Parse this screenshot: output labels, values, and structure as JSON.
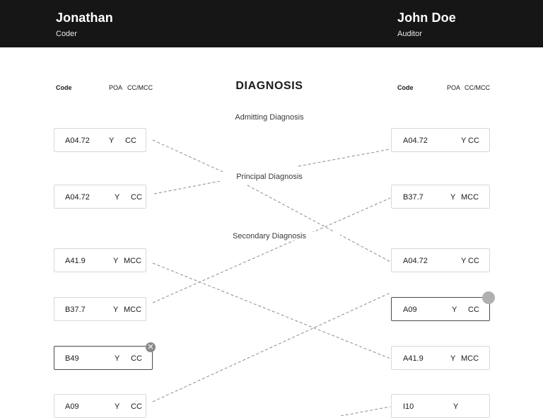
{
  "left_user": {
    "name": "Jonathan",
    "role": "Coder"
  },
  "right_user": {
    "name": "John Doe",
    "role": "Auditor"
  },
  "columns": {
    "code": "Code",
    "poa": "POA",
    "cc_mcc": "CC/MCC"
  },
  "title": "DIAGNOSIS",
  "sections": {
    "admitting": "Admitting Diagnosis",
    "principal": "Principal Diagnosis",
    "secondary": "Secondary Diagnosis"
  },
  "left_cards": [
    {
      "code": "A04.72",
      "poa": "Y",
      "cc": "CC"
    },
    {
      "code": "A04.72",
      "poa": "Y",
      "cc": "CC"
    },
    {
      "code": "A41.9",
      "poa": "Y",
      "cc": "MCC"
    },
    {
      "code": "B37.7",
      "poa": "Y",
      "cc": "MCC"
    },
    {
      "code": "B49",
      "poa": "Y",
      "cc": "CC"
    },
    {
      "code": "A09",
      "poa": "Y",
      "cc": "CC"
    }
  ],
  "right_cards": [
    {
      "code": "A04.72",
      "poa": "Y",
      "cc": "CC"
    },
    {
      "code": "B37.7",
      "poa": "Y",
      "cc": "MCC"
    },
    {
      "code": "A04.72",
      "poa": "Y",
      "cc": "CC"
    },
    {
      "code": "A09",
      "poa": "Y",
      "cc": "CC"
    },
    {
      "code": "A41.9",
      "poa": "Y",
      "cc": "MCC"
    },
    {
      "code": "I10",
      "poa": "Y",
      "cc": ""
    }
  ],
  "colors": {
    "header_bg": "#161616",
    "card_border": "#d8d8d8",
    "selected_border": "#4a4a4a",
    "line": "#8c8c8c"
  },
  "icons": {
    "remove": "close-circle-icon",
    "handle": "drag-handle-icon"
  }
}
